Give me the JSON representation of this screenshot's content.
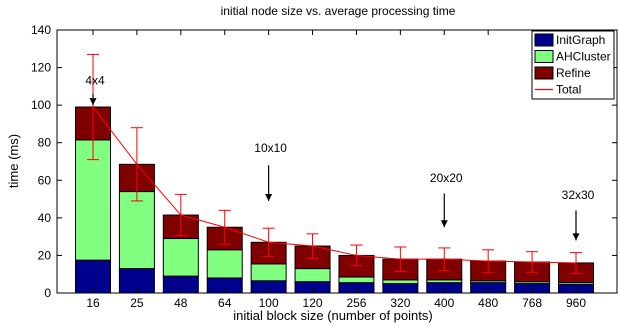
{
  "chart_data": {
    "type": "bar",
    "stacked": true,
    "title": "initial node size vs. average processing time",
    "xlabel": "initial block size (number of points)",
    "ylabel": "time (ms)",
    "ylim": [
      0,
      140
    ],
    "yticks": [
      0,
      20,
      40,
      60,
      80,
      100,
      120,
      140
    ],
    "categories": [
      "16",
      "25",
      "48",
      "64",
      "100",
      "120",
      "256",
      "320",
      "400",
      "480",
      "768",
      "960"
    ],
    "series": [
      {
        "name": "InitGraph",
        "color": "#00008f",
        "values": [
          17.5,
          13,
          9,
          8,
          6.5,
          6,
          5.5,
          5,
          5.5,
          5.5,
          5,
          4.5
        ]
      },
      {
        "name": "AHCluster",
        "color": "#80ff80",
        "values": [
          64,
          41,
          20,
          15,
          9,
          7,
          3,
          2,
          1.5,
          1,
          1,
          1
        ]
      },
      {
        "name": "Refine",
        "color": "#800000",
        "values": [
          17.5,
          14.5,
          12.5,
          12,
          11.5,
          12,
          11.5,
          11,
          11,
          10.5,
          10.5,
          10.5
        ]
      }
    ],
    "total_line": {
      "name": "Total",
      "color": "#ff0000",
      "values": [
        99,
        68.5,
        41.5,
        35,
        27,
        25,
        20,
        18,
        18,
        17,
        16.5,
        16
      ],
      "error": [
        28,
        19.5,
        11,
        9,
        7.5,
        6.5,
        5.5,
        6.5,
        6,
        6,
        5.5,
        5.5
      ]
    },
    "legend_position": "top-right",
    "grid": false,
    "annotations": [
      {
        "text": "4x4",
        "category": "16",
        "text_y": 111,
        "arrow_from": 106,
        "arrow_to": 100
      },
      {
        "text": "10x10",
        "category": "100",
        "text_y": 75,
        "arrow_from": 68,
        "arrow_to": 49
      },
      {
        "text": "20x20",
        "category": "400",
        "text_y": 59,
        "arrow_from": 53,
        "arrow_to": 35
      },
      {
        "text": "32x30",
        "category": "960",
        "text_y": 50,
        "arrow_from": 44,
        "arrow_to": 28
      }
    ]
  }
}
